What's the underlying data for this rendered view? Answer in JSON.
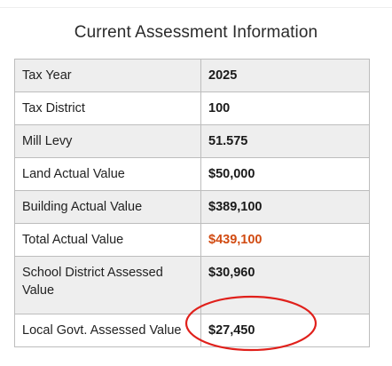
{
  "title": "Current Assessment Information",
  "rows": [
    {
      "label": "Tax Year",
      "value": "2025"
    },
    {
      "label": "Tax District",
      "value": "100"
    },
    {
      "label": "Mill Levy",
      "value": "51.575"
    },
    {
      "label": "Land Actual Value",
      "value": "$50,000"
    },
    {
      "label": "Building Actual Value",
      "value": "$389,100"
    },
    {
      "label": "Total Actual Value",
      "value": "$439,100"
    },
    {
      "label": "School District Assessed Value",
      "value": "$30,960"
    },
    {
      "label": "Local Govt. Assessed Value",
      "value": "$27,450"
    }
  ],
  "colors": {
    "accent_value": "#d14b12",
    "annotation_circle": "#e0201b",
    "row_shade": "#eeeeee"
  }
}
